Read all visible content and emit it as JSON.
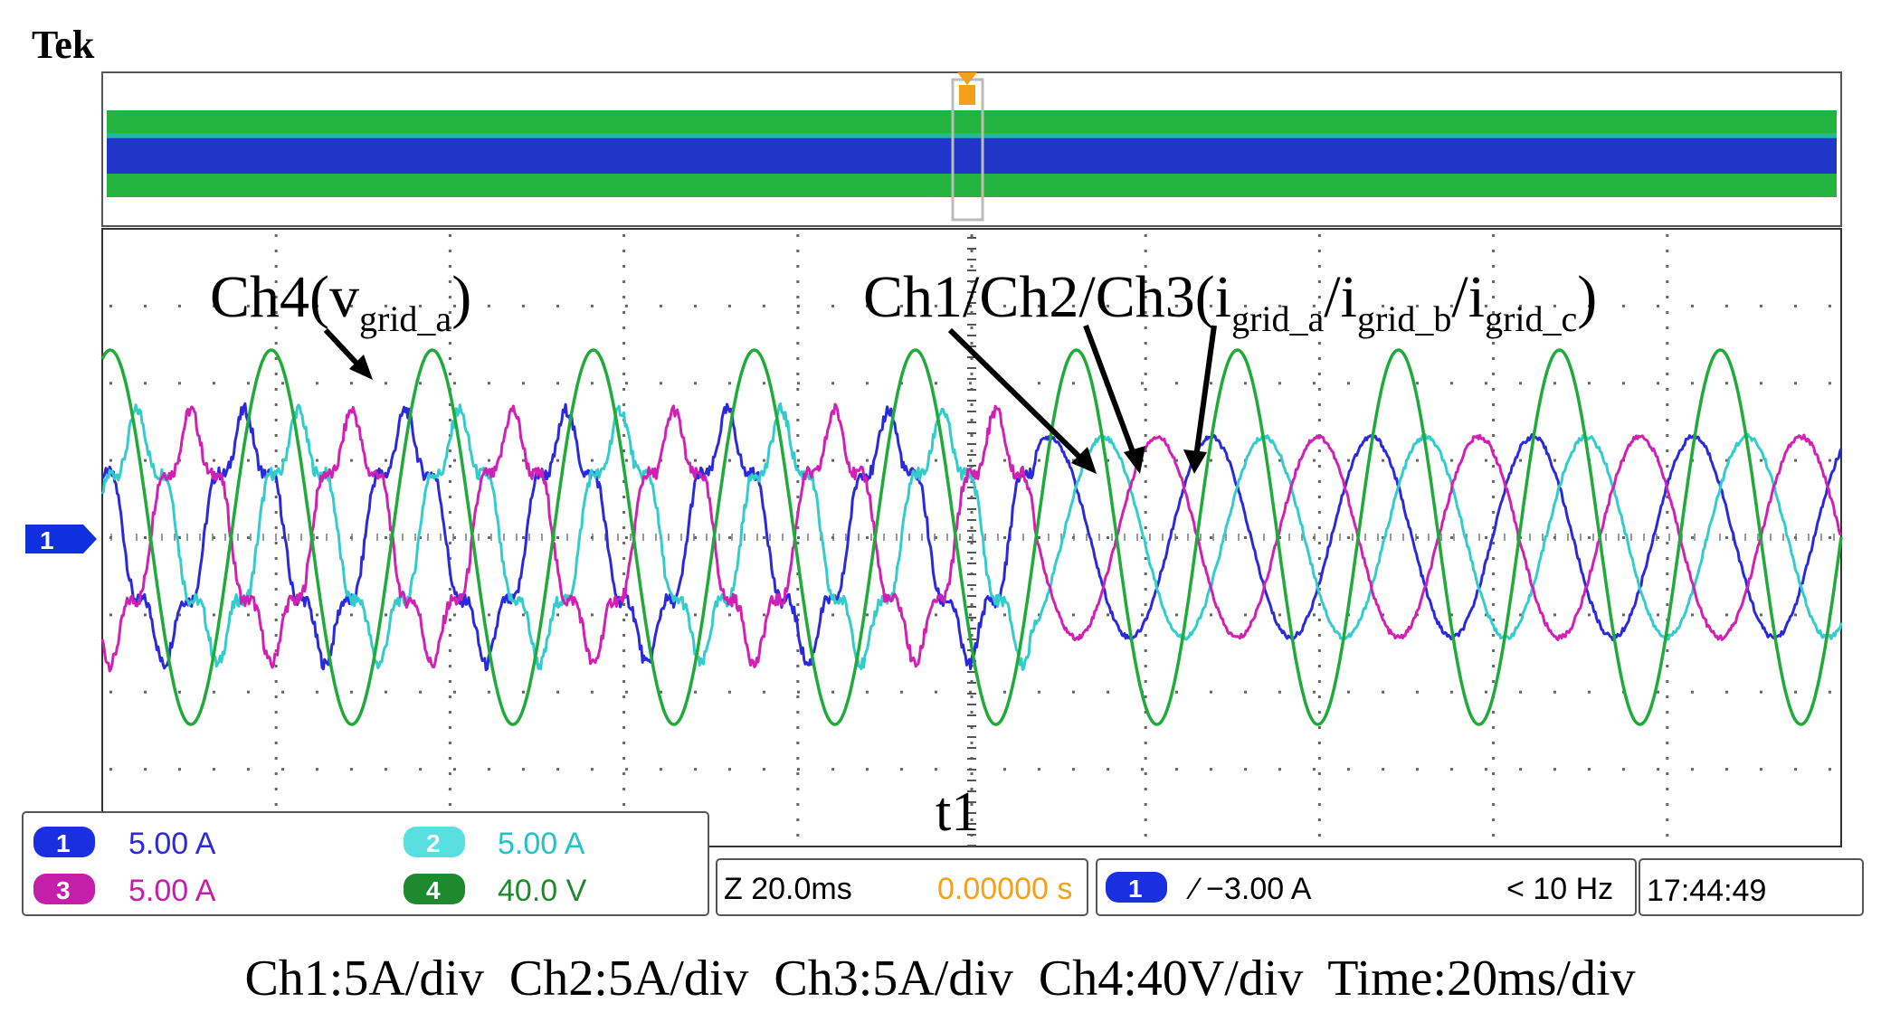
{
  "brand": "Tek",
  "annotations": {
    "ch4_prefix": "Ch4(v",
    "ch4_sub": "grid_a",
    "ch4_suffix": ")",
    "currents_prefix": "Ch1/Ch2/Ch3(i",
    "sub_a": "grid_a",
    "sep1": "/i",
    "sub_b": "grid_b",
    "sep2": "/i",
    "sub_c": "grid_c",
    "currents_suffix": ")",
    "t1": "t1",
    "ground_marker": "1"
  },
  "channels": [
    {
      "num": "1",
      "scale": "5.00 A",
      "color": "#2a2adb"
    },
    {
      "num": "2",
      "scale": "5.00 A",
      "color": "#33cccc"
    },
    {
      "num": "3",
      "scale": "5.00 A",
      "color": "#d21fb4"
    },
    {
      "num": "4",
      "scale": "40.0 V",
      "color": "#1faa3a"
    }
  ],
  "timebase": {
    "zoom": "Z 20.0ms",
    "position": "0.00000 s"
  },
  "trigger": {
    "channel": "1",
    "level": "∕ −3.00 A",
    "freq": "< 10 Hz"
  },
  "clock": "17:44:49",
  "caption": "Ch1:5A/div  Ch2:5A/div  Ch3:5A/div  Ch4:40V/div  Time:20ms/div",
  "colors": {
    "ch1": "#2a2adb",
    "ch2": "#33cccc",
    "ch3": "#d21fb4",
    "ch4": "#1faa3a",
    "time_orange": "#f5a01a"
  },
  "chart_data": {
    "type": "line",
    "x_unit": "ms",
    "x_range": [
      -116,
      100
    ],
    "divisions": {
      "x": 10,
      "y": 8
    },
    "events": [
      {
        "label": "t1",
        "x": 0
      }
    ],
    "series": [
      {
        "name": "Ch4",
        "channel": 4,
        "unit": "V",
        "amplitude": 97,
        "frequency_hz": 50,
        "phase_deg": 0
      },
      {
        "name": "Ch1",
        "channel": 1,
        "unit": "A",
        "amplitude_before_t1": 7,
        "amplitude_after_t1": 6.5,
        "frequency_hz": 50,
        "phase_deg": 60
      },
      {
        "name": "Ch2",
        "channel": 2,
        "unit": "A",
        "amplitude_before_t1": 7,
        "amplitude_after_t1": 6.5,
        "frequency_hz": 50,
        "phase_deg": -60
      },
      {
        "name": "Ch3",
        "channel": 3,
        "unit": "A",
        "amplitude_before_t1": 7,
        "amplitude_after_t1": 6.5,
        "frequency_hz": 50,
        "phase_deg": 180
      }
    ]
  }
}
